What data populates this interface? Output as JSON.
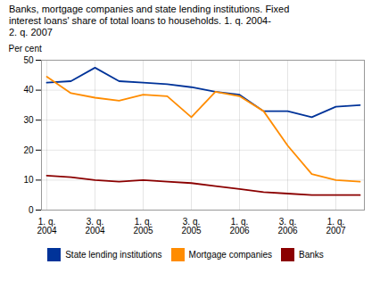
{
  "chart_data": {
    "type": "line",
    "title": "Banks, mortgage companies and state lending institutions. Fixed\ninterest loans' share of total loans to households. 1. q. 2004-\n2. q. 2007",
    "ylabel": "Per cent",
    "categories": [
      "1. q.\n2004",
      null,
      "3. q.\n2004",
      null,
      "1. q.\n2005",
      null,
      "3. q.\n2005",
      null,
      "1. q.\n2006",
      null,
      "3. q.\n2006",
      null,
      "1. q.\n2007",
      null
    ],
    "series": [
      {
        "name": "State lending institutions",
        "color": "#003399",
        "values": [
          42.5,
          43.0,
          47.5,
          43.0,
          42.5,
          42.0,
          41.0,
          39.5,
          38.5,
          33.0,
          33.0,
          31.0,
          34.5,
          35.0
        ]
      },
      {
        "name": "Mortgage companies",
        "color": "#FF8C00",
        "values": [
          44.5,
          39.0,
          37.5,
          36.5,
          38.5,
          38.0,
          31.0,
          39.5,
          38.0,
          33.0,
          21.5,
          12.0,
          10.0,
          9.5
        ]
      },
      {
        "name": "Banks",
        "color": "#8B0000",
        "values": [
          11.5,
          11.0,
          10.0,
          9.5,
          10.0,
          9.5,
          9.0,
          8.0,
          7.0,
          6.0,
          5.5,
          5.0,
          5.0,
          5.0
        ]
      }
    ],
    "ylim": [
      0,
      50
    ],
    "yticks": [
      0,
      10,
      20,
      30,
      40,
      50
    ],
    "grid": true,
    "legend": "bottom"
  }
}
